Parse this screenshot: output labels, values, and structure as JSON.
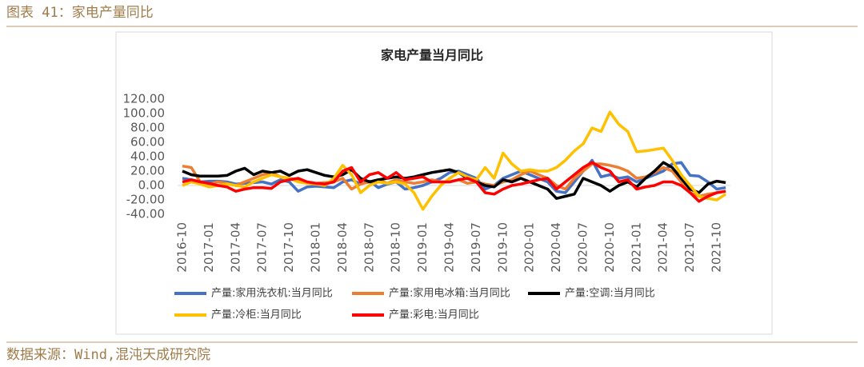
{
  "header": "图表 41：家电产量同比",
  "source": "数据来源：Wind,混沌天成研究院",
  "chart_data": {
    "type": "line",
    "title": "家电产量当月同比",
    "categories": [
      "2016-10",
      null,
      null,
      "2017-01",
      null,
      null,
      "2017-04",
      null,
      null,
      "2017-07",
      null,
      null,
      "2017-10",
      null,
      null,
      "2018-01",
      null,
      null,
      "2018-04",
      null,
      null,
      "2018-07",
      null,
      null,
      "2018-10",
      null,
      null,
      "2019-01",
      null,
      null,
      "2019-04",
      null,
      null,
      "2019-07",
      null,
      null,
      "2019-10",
      null,
      null,
      "2020-01",
      null,
      null,
      "2020-04",
      null,
      null,
      "2020-07",
      null,
      null,
      "2020-10",
      null,
      null,
      "2021-01",
      null,
      null,
      "2021-04",
      null,
      null,
      "2021-07",
      null,
      null,
      "2021-10",
      null
    ],
    "ylim": [
      -40,
      120
    ],
    "yticks": [
      {
        "value": -40,
        "label": "-40.00"
      },
      {
        "value": -20,
        "label": "-20.00"
      },
      {
        "value": 0,
        "label": "0.00"
      },
      {
        "value": 20,
        "label": "20.00"
      },
      {
        "value": 40,
        "label": "40.00"
      },
      {
        "value": 60,
        "label": "60.00"
      },
      {
        "value": 80,
        "label": "80.00"
      },
      {
        "value": 100,
        "label": "100.00"
      },
      {
        "value": 120,
        "label": "120.00"
      }
    ],
    "legend": "bottom",
    "series": [
      {
        "name": "产量:家用洗衣机:当月同比",
        "color": "#4472c4",
        "values": [
          10,
          8,
          5,
          6,
          6,
          5,
          2,
          3,
          4,
          5,
          2,
          8,
          5,
          -8,
          -2,
          -1,
          -2,
          -3,
          5,
          8,
          2,
          6,
          -3,
          2,
          5,
          -5,
          -3,
          0,
          5,
          10,
          18,
          20,
          15,
          10,
          -5,
          0,
          10,
          15,
          20,
          15,
          10,
          5,
          -8,
          -10,
          5,
          20,
          35,
          12,
          15,
          10,
          12,
          5,
          10,
          15,
          20,
          30,
          32,
          14,
          13,
          5,
          -5,
          -3
        ]
      },
      {
        "name": "产量:家用电冰箱:当月同比",
        "color": "#ed7d31",
        "values": [
          27,
          25,
          5,
          2,
          5,
          3,
          0,
          5,
          10,
          15,
          18,
          12,
          10,
          8,
          5,
          3,
          4,
          5,
          10,
          -5,
          2,
          5,
          8,
          3,
          8,
          5,
          3,
          5,
          8,
          5,
          5,
          8,
          3,
          5,
          2,
          0,
          5,
          8,
          15,
          20,
          15,
          10,
          0,
          -5,
          10,
          20,
          30,
          30,
          28,
          25,
          20,
          10,
          12,
          18,
          25,
          20,
          5,
          -10,
          -15,
          -12,
          -10,
          -8
        ]
      },
      {
        "name": "产量:空调:当月同比",
        "color": "#000000",
        "values": [
          20,
          15,
          13,
          13,
          13,
          14,
          20,
          24,
          15,
          20,
          18,
          20,
          14,
          20,
          22,
          18,
          14,
          12,
          15,
          22,
          10,
          5,
          8,
          10,
          12,
          10,
          12,
          15,
          18,
          20,
          22,
          18,
          10,
          5,
          0,
          -2,
          8,
          5,
          10,
          5,
          0,
          -5,
          -18,
          -15,
          -12,
          10,
          5,
          0,
          -8,
          0,
          5,
          -2,
          10,
          20,
          32,
          25,
          10,
          -5,
          -10,
          2,
          6,
          4
        ]
      },
      {
        "name": "产量:冷柜:当月同比",
        "color": "#ffc000",
        "values": [
          0,
          5,
          2,
          -2,
          0,
          2,
          0,
          -2,
          5,
          10,
          15,
          12,
          10,
          5,
          3,
          2,
          0,
          10,
          28,
          15,
          -10,
          0,
          5,
          3,
          5,
          2,
          -10,
          -33,
          -15,
          0,
          10,
          18,
          12,
          8,
          25,
          10,
          45,
          30,
          20,
          22,
          20,
          20,
          25,
          35,
          48,
          58,
          80,
          75,
          102,
          85,
          75,
          47,
          48,
          50,
          52,
          35,
          15,
          0,
          -15,
          -18,
          -20,
          -12
        ]
      },
      {
        "name": "产量:彩电:当月同比",
        "color": "#ff0000",
        "values": [
          5,
          8,
          5,
          3,
          0,
          -2,
          -8,
          -5,
          -3,
          -3,
          -4,
          5,
          8,
          10,
          5,
          3,
          2,
          5,
          20,
          25,
          5,
          15,
          18,
          10,
          18,
          8,
          10,
          12,
          5,
          5,
          5,
          8,
          10,
          5,
          -10,
          -12,
          -5,
          0,
          2,
          5,
          8,
          10,
          -5,
          5,
          15,
          25,
          32,
          25,
          20,
          5,
          8,
          -5,
          -2,
          0,
          5,
          5,
          0,
          -10,
          -22,
          -15,
          -10,
          -8
        ]
      }
    ]
  }
}
